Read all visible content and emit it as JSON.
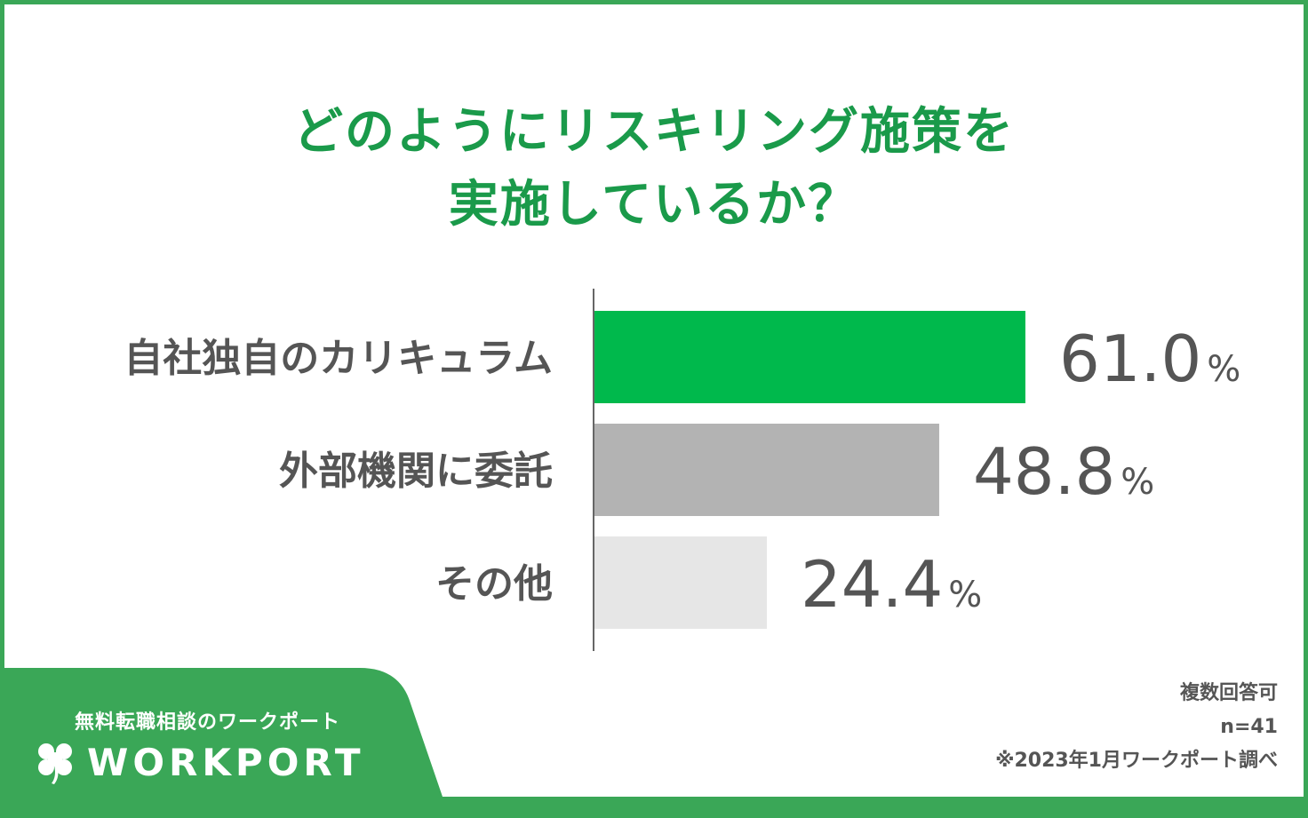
{
  "title_lines": [
    "どのようにリスキリング施策を",
    "実施しているか？"
  ],
  "chart_data": {
    "type": "bar",
    "orientation": "horizontal",
    "categories": [
      "自社独自のカリキュラム",
      "外部機関に委託",
      "その他"
    ],
    "values": [
      61.0,
      48.8,
      24.4
    ],
    "value_labels": [
      "61.0",
      "48.8",
      "24.4"
    ],
    "unit": "%",
    "bar_colors": [
      "#00b94c",
      "#b3b3b3",
      "#e6e6e6"
    ],
    "xlim": [
      0,
      100
    ],
    "grid": false
  },
  "footer": {
    "tagline": "無料転職相談のワークポート",
    "logo_text": "WORKPORT",
    "band_color": "#3aa757"
  },
  "notes": {
    "multiple_answer": "複数回答可",
    "sample_size": "n=41",
    "source": "※2023年1月ワークポート調べ"
  }
}
